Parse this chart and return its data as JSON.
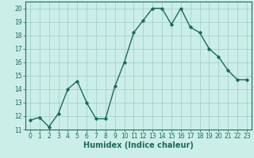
{
  "x": [
    0,
    1,
    2,
    3,
    4,
    5,
    6,
    7,
    8,
    9,
    10,
    11,
    12,
    13,
    14,
    15,
    16,
    17,
    18,
    19,
    20,
    21,
    22,
    23
  ],
  "y": [
    11.7,
    11.9,
    11.2,
    12.2,
    14.0,
    14.6,
    13.0,
    11.8,
    11.8,
    14.2,
    16.0,
    18.2,
    19.1,
    20.0,
    20.0,
    18.8,
    20.0,
    18.6,
    18.2,
    17.0,
    16.4,
    15.4,
    14.7,
    14.7
  ],
  "line_color": "#1a6b5a",
  "bg_color": "#cceee8",
  "grid_color": "#99cccc",
  "xlabel": "Humidex (Indice chaleur)",
  "xlim": [
    -0.5,
    23.5
  ],
  "ylim": [
    11,
    20.5
  ],
  "yticks": [
    11,
    12,
    13,
    14,
    15,
    16,
    17,
    18,
    19,
    20
  ],
  "xticks": [
    0,
    1,
    2,
    3,
    4,
    5,
    6,
    7,
    8,
    9,
    10,
    11,
    12,
    13,
    14,
    15,
    16,
    17,
    18,
    19,
    20,
    21,
    22,
    23
  ],
  "marker": "D",
  "marker_size": 1.8,
  "line_width": 1.0,
  "xlabel_fontsize": 7,
  "tick_fontsize": 5.5
}
